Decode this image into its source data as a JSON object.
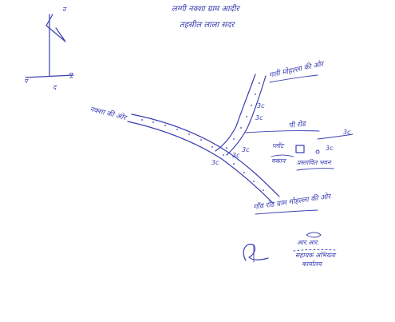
{
  "header": {
    "line1": "लग्गी नक्शा ग्राम आदीर",
    "line2": "तहसील लाला सदर"
  },
  "compass": {
    "n": "उ",
    "s": "द",
    "e": "पू",
    "w": "प"
  },
  "roads": {
    "north_branch": "गली मोहल्ला की ओर",
    "west": "नक्शा की ओर",
    "east": "पी रोड",
    "south": "गाँव रोड ग्राम मोहल्ला की ओर"
  },
  "site": {
    "label": "प्लॉट",
    "sub": "मकान",
    "caption": "प्रस्तावित भवन"
  },
  "distances": [
    "3c",
    "3c",
    "3c",
    "3c",
    "3c",
    "3c",
    "3c"
  ],
  "signature": {
    "name": "आर.आर.",
    "title": "सहायक अभियंता",
    "office": "कार्यालय"
  },
  "colors": {
    "ink": "#3a3fb0",
    "paper": "#ffffff"
  }
}
